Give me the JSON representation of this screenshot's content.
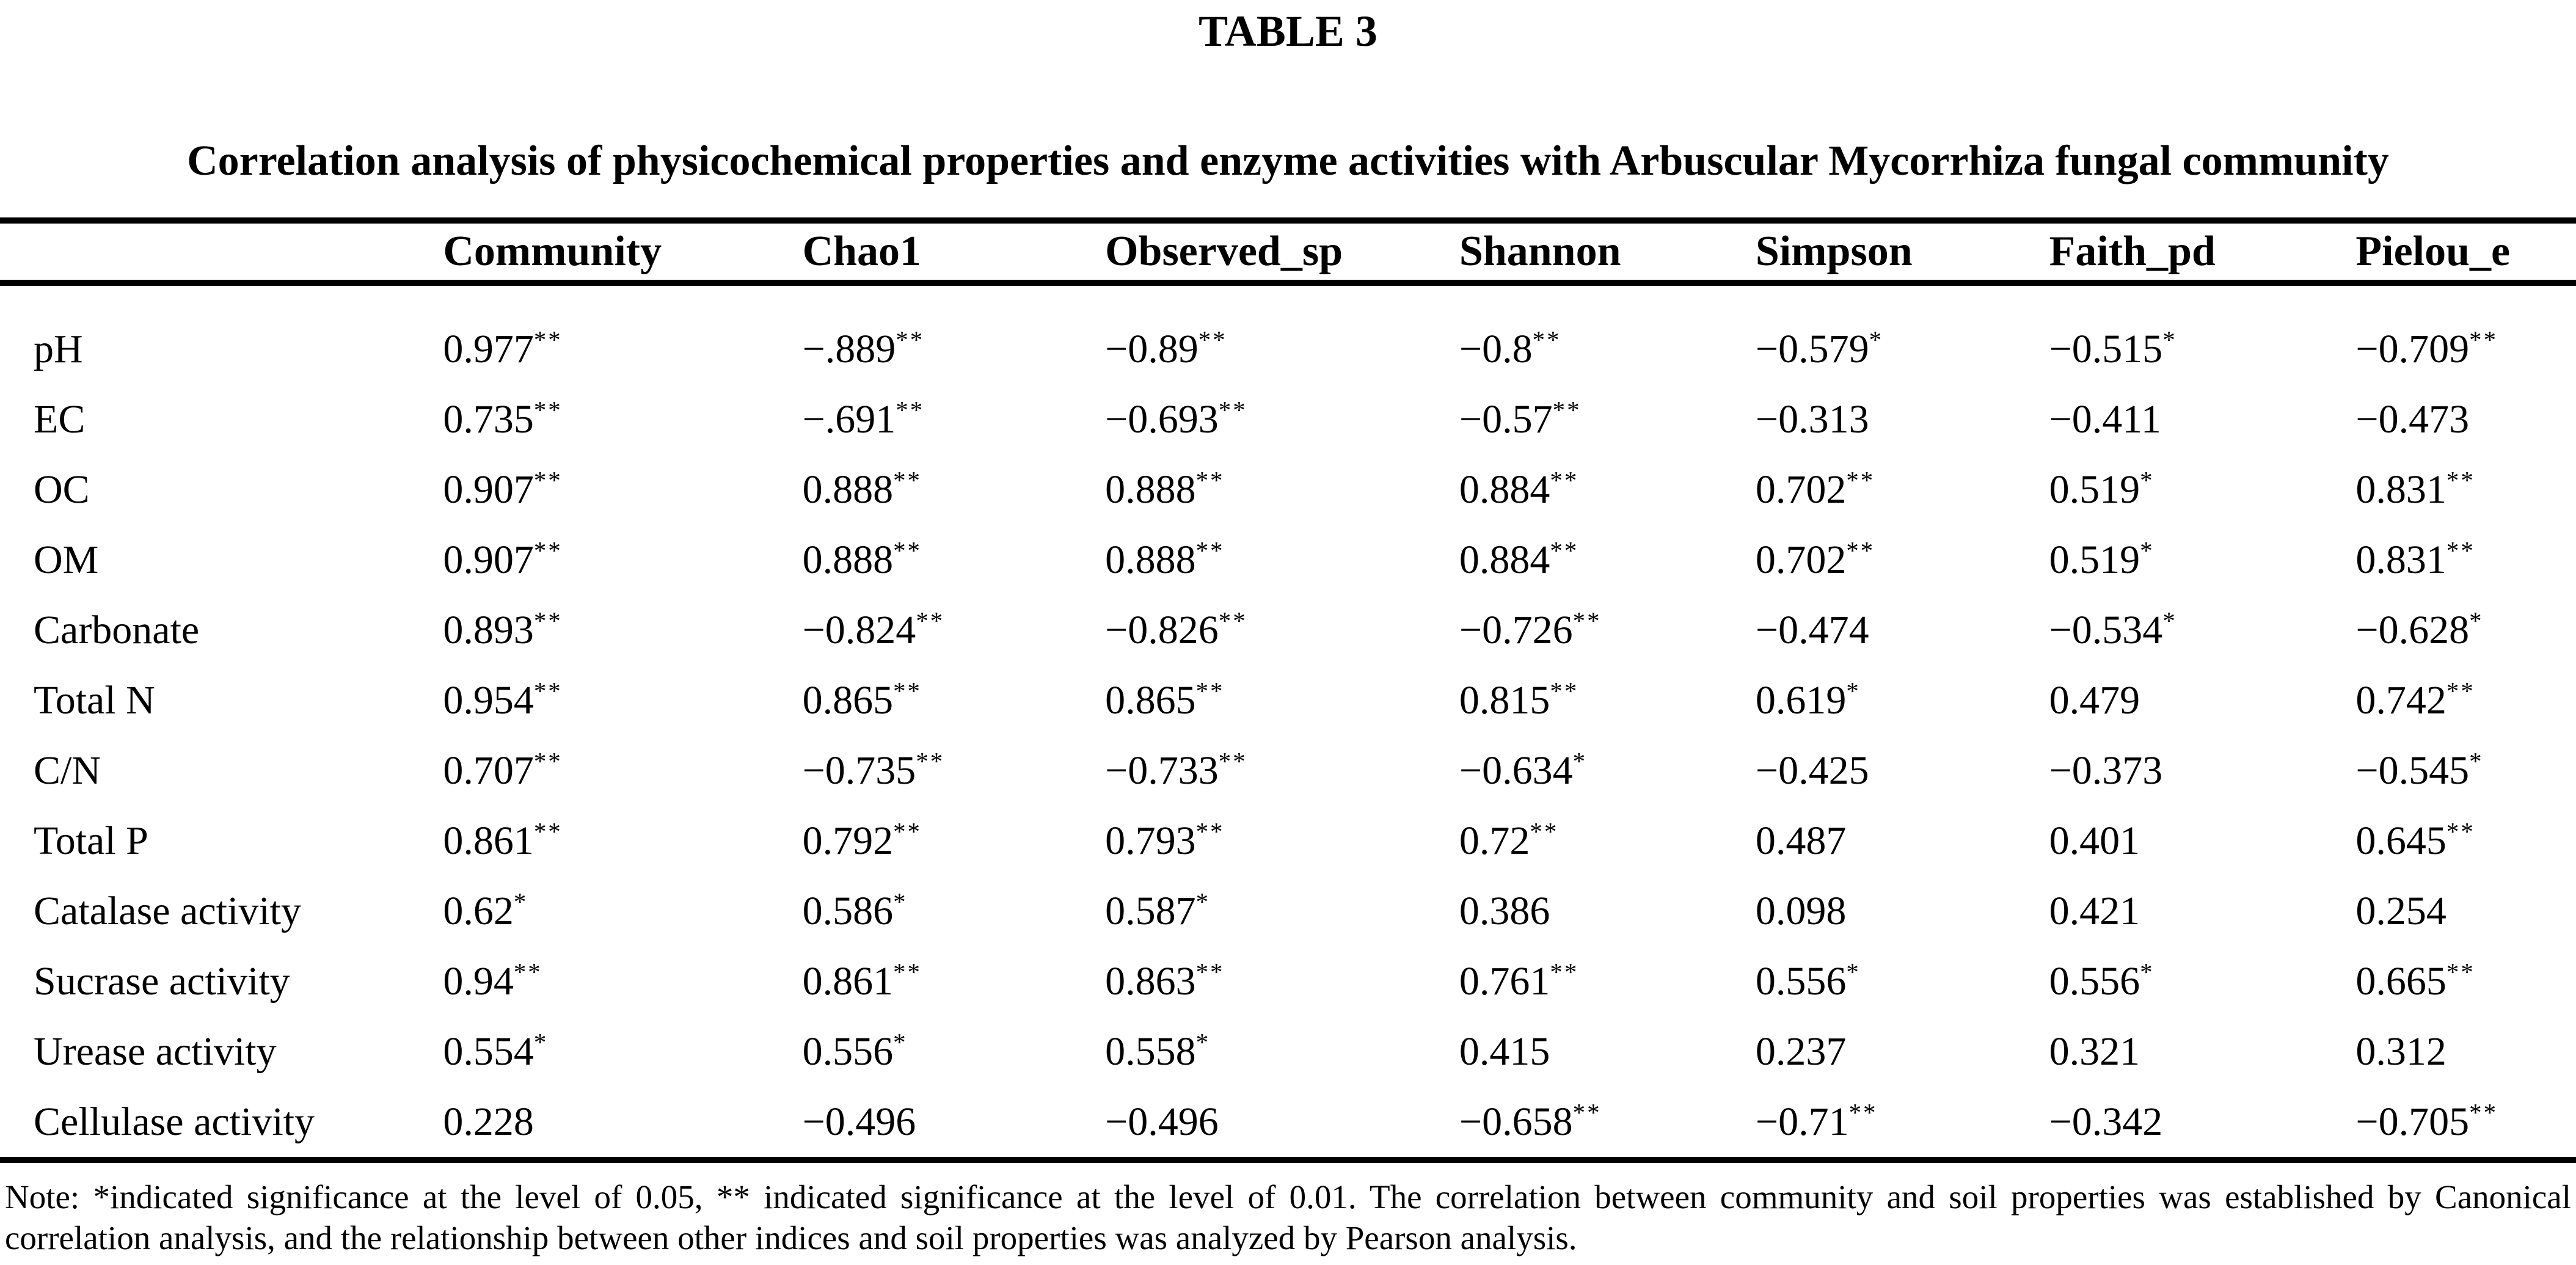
{
  "title": "TABLE 3",
  "subtitle": "Correlation analysis of physicochemical properties and enzyme activities with Arbuscular Mycorrhiza fungal community",
  "table": {
    "columns": [
      "",
      "Community",
      "Chao1",
      "Observed_sp",
      "Shannon",
      "Simpson",
      "Faith_pd",
      "Pielou_e"
    ],
    "rows": [
      {
        "label": "pH",
        "values": [
          "0.977**",
          "−.889**",
          "−0.89**",
          "−0.8**",
          "−0.579*",
          "−0.515*",
          "−0.709**"
        ]
      },
      {
        "label": "EC",
        "values": [
          "0.735**",
          "−.691**",
          "−0.693**",
          "−0.57**",
          "−0.313",
          "−0.411",
          "−0.473"
        ]
      },
      {
        "label": "OC",
        "values": [
          "0.907**",
          "0.888**",
          "0.888**",
          "0.884**",
          "0.702**",
          "0.519*",
          "0.831**"
        ]
      },
      {
        "label": "OM",
        "values": [
          "0.907**",
          "0.888**",
          "0.888**",
          "0.884**",
          "0.702**",
          "0.519*",
          "0.831**"
        ]
      },
      {
        "label": "Carbonate",
        "values": [
          "0.893**",
          "−0.824**",
          "−0.826**",
          "−0.726**",
          "−0.474",
          "−0.534*",
          "−0.628*"
        ]
      },
      {
        "label": "Total N",
        "values": [
          "0.954**",
          "0.865**",
          "0.865**",
          "0.815**",
          "0.619*",
          "0.479",
          "0.742**"
        ]
      },
      {
        "label": "C/N",
        "values": [
          "0.707**",
          "−0.735**",
          "−0.733**",
          "−0.634*",
          "−0.425",
          "−0.373",
          "−0.545*"
        ]
      },
      {
        "label": "Total P",
        "values": [
          "0.861**",
          "0.792**",
          "0.793**",
          "0.72**",
          "0.487",
          "0.401",
          "0.645**"
        ]
      },
      {
        "label": "Catalase activity",
        "values": [
          "0.62*",
          "0.586*",
          "0.587*",
          "0.386",
          "0.098",
          "0.421",
          "0.254"
        ]
      },
      {
        "label": "Sucrase activity",
        "values": [
          "0.94**",
          "0.861**",
          "0.863**",
          "0.761**",
          "0.556*",
          "0.556*",
          "0.665**"
        ]
      },
      {
        "label": "Urease activity",
        "values": [
          "0.554*",
          "0.556*",
          "0.558*",
          "0.415",
          "0.237",
          "0.321",
          "0.312"
        ]
      },
      {
        "label": "Cellulase activity",
        "values": [
          "0.228",
          "−0.496",
          "−0.496",
          "−0.658**",
          "−0.71**",
          "−0.342",
          "−0.705**"
        ]
      }
    ]
  },
  "note": "Note: *indicated significance at the level of 0.05, ** indicated significance at the level of 0.01. The correlation between community and soil properties was established by Canonical correlation analysis, and the relationship between other indices and soil properties was analyzed by Pearson analysis.",
  "chart_data": {
    "type": "table",
    "title": "TABLE 3",
    "subtitle": "Correlation analysis of physicochemical properties and enzyme activities with Arbuscular Mycorrhiza fungal community",
    "columns": [
      "Community",
      "Chao1",
      "Observed_sp",
      "Shannon",
      "Simpson",
      "Faith_pd",
      "Pielou_e"
    ],
    "row_labels": [
      "pH",
      "EC",
      "OC",
      "OM",
      "Carbonate",
      "Total N",
      "C/N",
      "Total P",
      "Catalase activity",
      "Sucrase activity",
      "Urease activity",
      "Cellulase activity"
    ],
    "values": [
      [
        0.977,
        -0.889,
        -0.89,
        -0.8,
        -0.579,
        -0.515,
        -0.709
      ],
      [
        0.735,
        -0.691,
        -0.693,
        -0.57,
        -0.313,
        -0.411,
        -0.473
      ],
      [
        0.907,
        0.888,
        0.888,
        0.884,
        0.702,
        0.519,
        0.831
      ],
      [
        0.907,
        0.888,
        0.888,
        0.884,
        0.702,
        0.519,
        0.831
      ],
      [
        0.893,
        -0.824,
        -0.826,
        -0.726,
        -0.474,
        -0.534,
        -0.628
      ],
      [
        0.954,
        0.865,
        0.865,
        0.815,
        0.619,
        0.479,
        0.742
      ],
      [
        0.707,
        -0.735,
        -0.733,
        -0.634,
        -0.425,
        -0.373,
        -0.545
      ],
      [
        0.861,
        0.792,
        0.793,
        0.72,
        0.487,
        0.401,
        0.645
      ],
      [
        0.62,
        0.586,
        0.587,
        0.386,
        0.098,
        0.421,
        0.254
      ],
      [
        0.94,
        0.861,
        0.863,
        0.761,
        0.556,
        0.556,
        0.665
      ],
      [
        0.554,
        0.556,
        0.558,
        0.415,
        0.237,
        0.321,
        0.312
      ],
      [
        0.228,
        -0.496,
        -0.496,
        -0.658,
        -0.71,
        -0.342,
        -0.705
      ]
    ],
    "significance": [
      [
        "**",
        "**",
        "**",
        "**",
        "*",
        "*",
        "**"
      ],
      [
        "**",
        "**",
        "**",
        "**",
        "",
        "",
        ""
      ],
      [
        "**",
        "**",
        "**",
        "**",
        "**",
        "*",
        "**"
      ],
      [
        "**",
        "**",
        "**",
        "**",
        "**",
        "*",
        "**"
      ],
      [
        "**",
        "**",
        "**",
        "**",
        "",
        "*",
        "*"
      ],
      [
        "**",
        "**",
        "**",
        "**",
        "*",
        "",
        "**"
      ],
      [
        "**",
        "**",
        "**",
        "*",
        "",
        "",
        "*"
      ],
      [
        "**",
        "**",
        "**",
        "**",
        "",
        "",
        "**"
      ],
      [
        "*",
        "*",
        "*",
        "",
        "",
        "",
        ""
      ],
      [
        "**",
        "**",
        "**",
        "**",
        "*",
        "*",
        "**"
      ],
      [
        "*",
        "*",
        "*",
        "",
        "",
        "",
        ""
      ],
      [
        "",
        "",
        "",
        "**",
        "**",
        "",
        "**"
      ]
    ]
  }
}
